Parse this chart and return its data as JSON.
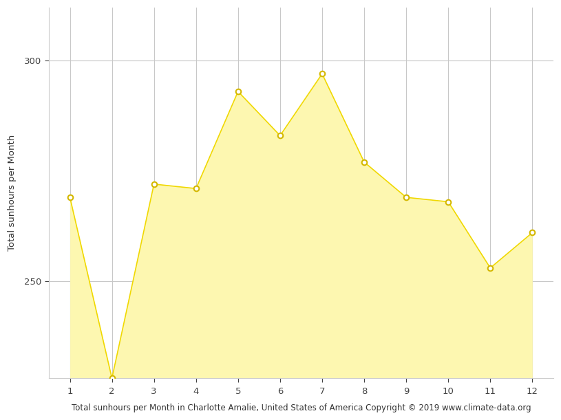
{
  "months": [
    1,
    2,
    3,
    4,
    5,
    6,
    7,
    8,
    9,
    10,
    11,
    12
  ],
  "values": [
    269,
    228,
    272,
    271,
    293,
    283,
    297,
    277,
    269,
    268,
    253,
    261
  ],
  "line_color": "#f0d800",
  "fill_color": "#fdf7b0",
  "marker_facecolor": "#ffffff",
  "marker_edgecolor": "#d4b800",
  "xlabel": "Total sunhours per Month in Charlotte Amalie, United States of America Copyright © 2019 www.climate-data.org",
  "ylabel": "Total sunhours per Month",
  "yticks": [
    250,
    300
  ],
  "xticks": [
    1,
    2,
    3,
    4,
    5,
    6,
    7,
    8,
    9,
    10,
    11,
    12
  ],
  "ylim_bottom": 228,
  "ylim_top": 312,
  "xlim_left": 0.5,
  "xlim_right": 12.5,
  "bg_color": "#ffffff",
  "grid_color": "#c8c8c8",
  "xlabel_fontsize": 8.5,
  "ylabel_fontsize": 9.5,
  "tick_fontsize": 9.5,
  "figwidth": 8.15,
  "figheight": 6.11,
  "dpi": 100
}
